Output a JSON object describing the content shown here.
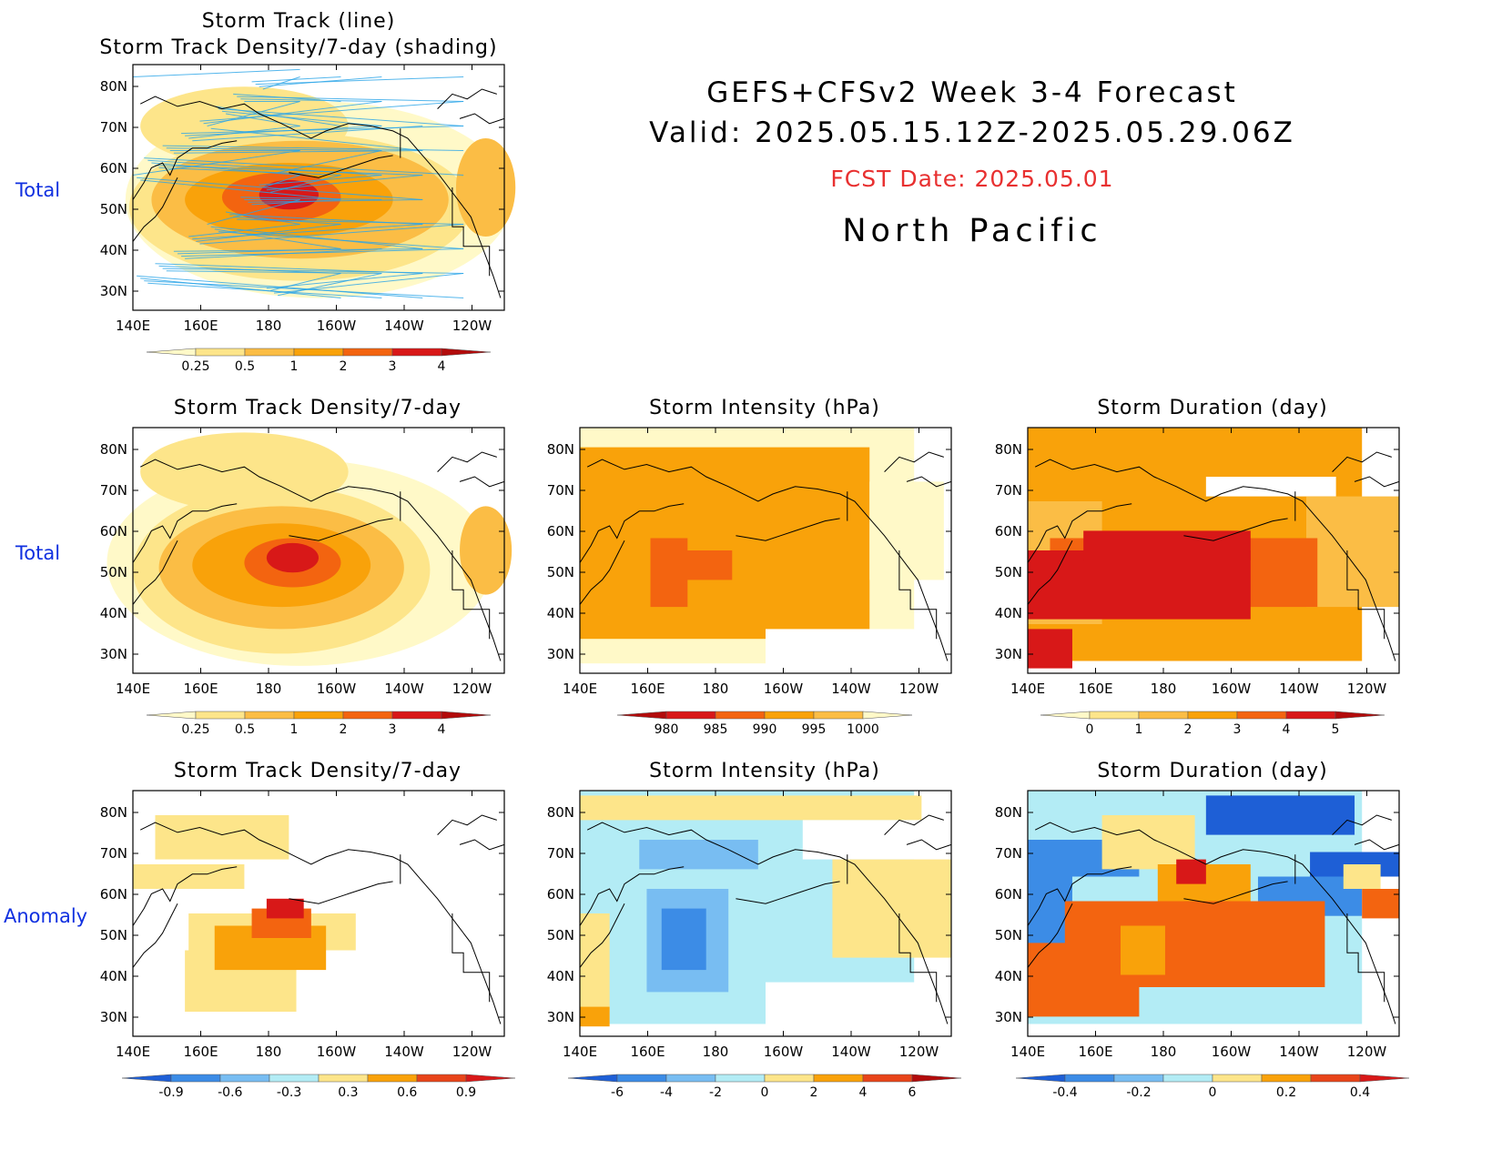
{
  "header": {
    "title_line1": "GEFS+CFSv2 Week 3-4 Forecast",
    "title_line2": "Valid: 2025.05.15.12Z-2025.05.29.06Z",
    "fcst_date": "FCST Date: 2025.05.01",
    "region": "North Pacific"
  },
  "row_labels": [
    "Total",
    "Total",
    "Anomaly"
  ],
  "axes": {
    "lon_ticks": [
      "140E",
      "160E",
      "180",
      "160W",
      "140W",
      "120W"
    ],
    "lat_ticks": [
      "80N",
      "70N",
      "60N",
      "50N",
      "40N",
      "30N"
    ]
  },
  "panels": [
    {
      "id": "top",
      "title_line1": "Storm Track (line)",
      "title_line2": "Storm Track Density/7-day (shading)",
      "colorbar": {
        "labels": [
          "0.25",
          "0.5",
          "1",
          "2",
          "3",
          "4"
        ],
        "colors": [
          "#fff9c8",
          "#fde58a",
          "#fbbd45",
          "#f9a20a",
          "#f36410",
          "#d81818",
          "#b20b0b"
        ]
      }
    },
    {
      "id": "density-total",
      "title": "Storm Track Density/7-day",
      "colorbar": {
        "labels": [
          "0.25",
          "0.5",
          "1",
          "2",
          "3",
          "4"
        ],
        "colors": [
          "#fff9c8",
          "#fde58a",
          "#fbbd45",
          "#f9a20a",
          "#f36410",
          "#d81818",
          "#b20b0b"
        ]
      }
    },
    {
      "id": "intensity-total",
      "title": "Storm Intensity (hPa)",
      "colorbar": {
        "labels": [
          "980",
          "985",
          "990",
          "995",
          "1000"
        ],
        "colors": [
          "#b20b0b",
          "#d81818",
          "#f36410",
          "#f9a20a",
          "#fbbd45",
          "#fff9c8"
        ]
      }
    },
    {
      "id": "duration-total",
      "title": "Storm Duration (day)",
      "colorbar": {
        "labels": [
          "0",
          "1",
          "2",
          "3",
          "4",
          "5"
        ],
        "colors": [
          "#fff9c8",
          "#fde58a",
          "#fbbd45",
          "#f9a20a",
          "#f36410",
          "#d81818",
          "#b20b0b"
        ]
      }
    },
    {
      "id": "density-anom",
      "title": "Storm Track Density/7-day",
      "colorbar": {
        "labels": [
          "-0.9",
          "-0.6",
          "-0.3",
          "0.3",
          "0.6",
          "0.9"
        ],
        "colors": [
          "#1e5fd6",
          "#3c8ce6",
          "#78bdf2",
          "#b3ecf5",
          "#fde58a",
          "#f9a20a",
          "#e8451a",
          "#d81818"
        ]
      }
    },
    {
      "id": "intensity-anom",
      "title": "Storm Intensity (hPa)",
      "colorbar": {
        "labels": [
          "-6",
          "-4",
          "-2",
          "0",
          "2",
          "4",
          "6"
        ],
        "colors": [
          "#1e5fd6",
          "#3c8ce6",
          "#78bdf2",
          "#b3ecf5",
          "#fde58a",
          "#f9a20a",
          "#e8451a",
          "#b20b0b"
        ]
      }
    },
    {
      "id": "duration-anom",
      "title": "Storm Duration (day)",
      "colorbar": {
        "labels": [
          "-0.4",
          "-0.2",
          "0",
          "0.2",
          "0.4"
        ],
        "colors": [
          "#1e5fd6",
          "#3c8ce6",
          "#78bdf2",
          "#b3ecf5",
          "#fde58a",
          "#f9a20a",
          "#e8451a",
          "#d81818"
        ]
      }
    }
  ]
}
